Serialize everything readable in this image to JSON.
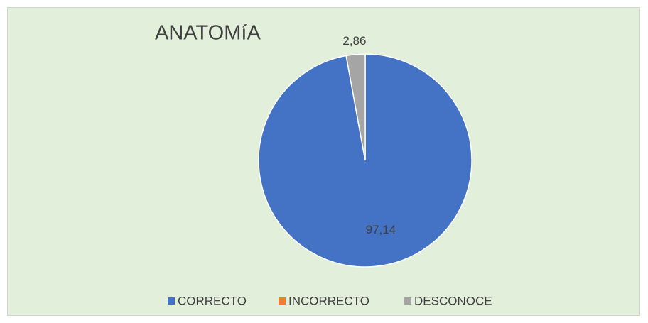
{
  "chart_data": {
    "type": "pie",
    "title": "ANATOMíA",
    "categories": [
      "CORRECTO",
      "INCORRECTO",
      "DESCONOCE"
    ],
    "values": [
      97.14,
      0,
      2.86
    ],
    "value_labels": [
      "97,14",
      null,
      "2,86"
    ],
    "colors": [
      "#4472c4",
      "#ed7d31",
      "#a5a5a5"
    ],
    "legend": "bottom"
  }
}
